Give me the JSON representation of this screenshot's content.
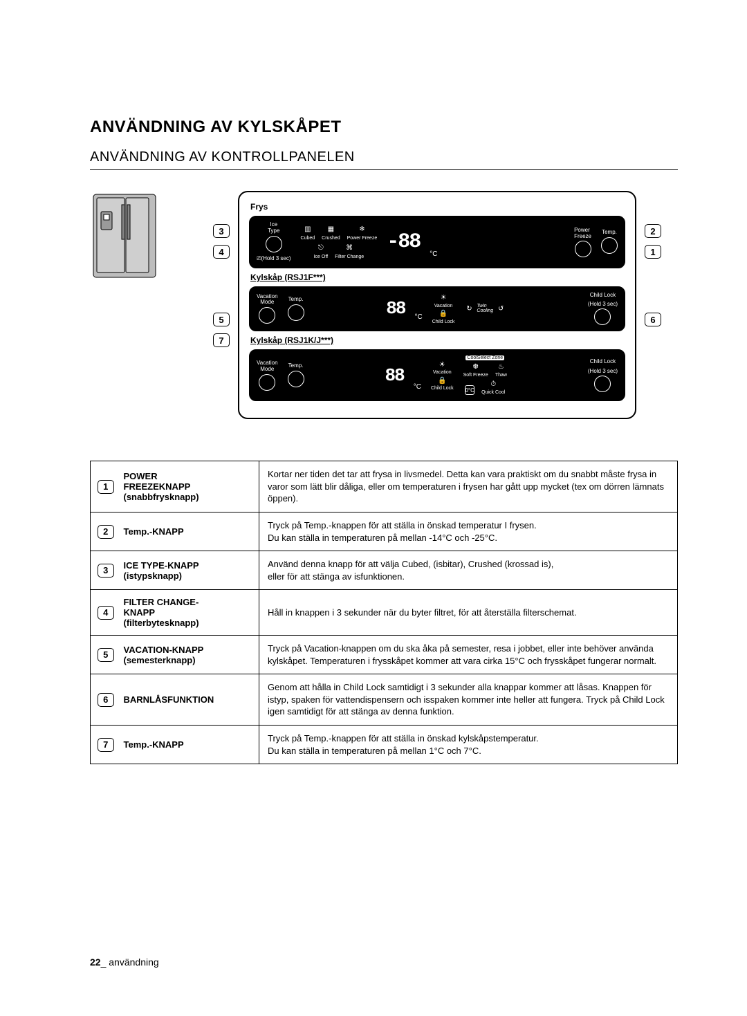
{
  "page": {
    "number": "22",
    "section_word": "användning"
  },
  "headings": {
    "main": "ANVÄNDNING AV KYLSKÅPET",
    "sub": "ANVÄNDNING AV KONTROLLPANELEN"
  },
  "panel": {
    "sections": {
      "frys": "Frys",
      "kyl1": "Kylskåp (RSJ1F***)",
      "kyl2": "Kylskåp (RSJ1K/J***)"
    },
    "frys": {
      "ice_type": "Ice\nType",
      "cubed": "Cubed",
      "crushed": "Crushed",
      "power_freeze_icon": "Power Freeze",
      "ice_off": "Ice Off",
      "filter_change": "Filter Change",
      "hold3": "(Hold 3 sec)",
      "seg": "-88",
      "degc": "°C",
      "power_freeze": "Power\nFreeze",
      "temp": "Temp."
    },
    "kyl": {
      "vacation_mode": "Vacation\nMode",
      "temp": "Temp.",
      "seg": "88",
      "degc": "°C",
      "vacation": "Vacation",
      "child_lock_small": "Child Lock",
      "twin_cooling": "Twin\nCooling",
      "child_lock": "Child Lock",
      "hold3": "(Hold 3 sec)",
      "cool_select": "CoolSelect Zone",
      "soft_freeze": "Soft Freeze",
      "thaw": "Thaw",
      "zero": "0°C",
      "quick_cool": "Quick Cool"
    },
    "callouts": {
      "c1": "1",
      "c2": "2",
      "c3": "3",
      "c4": "4",
      "c5": "5",
      "c6": "6",
      "c7": "7"
    }
  },
  "rows": [
    {
      "num": "1",
      "name_html": "POWER FREEZEKNAPP (snabbfrysknapp)",
      "name_lines": [
        "POWER",
        "FREEZEKNAPP",
        "(snabbfrysknapp)"
      ],
      "desc": "Kortar ner tiden det tar att frysa in livsmedel. Detta kan vara praktiskt om du snabbt måste frysa in varor som lätt blir dåliga, eller om temperaturen i frysen har gått upp mycket (tex om dörren lämnats öppen)."
    },
    {
      "num": "2",
      "name_lines": [
        "Temp.-KNAPP"
      ],
      "desc": "Tryck på Temp.-knappen för att ställa in önskad temperatur I frysen.\nDu kan ställa in temperaturen på mellan -14°C och -25°C."
    },
    {
      "num": "3",
      "name_lines": [
        "ICE TYPE-KNAPP",
        "(istypsknapp)"
      ],
      "desc": "Använd denna knapp för att välja Cubed, (isbitar), Crushed (krossad is),\neller för att stänga av isfunktionen."
    },
    {
      "num": "4",
      "name_lines": [
        "FILTER CHANGE-",
        "KNAPP",
        "(filterbytesknapp)"
      ],
      "desc": "Håll in knappen i 3 sekunder när du byter filtret, för att återställa filterschemat."
    },
    {
      "num": "5",
      "name_lines": [
        "VACATION-KNAPP",
        "(semesterknapp)"
      ],
      "desc": "Tryck på Vacation-knappen om du ska åka på semester, resa i jobbet, eller inte behöver använda kylskåpet. Temperaturen i frysskåpet kommer att vara cirka 15°C och frysskåpet fungerar normalt."
    },
    {
      "num": "6",
      "name_lines": [
        "BARNLÅSFUNKTION"
      ],
      "desc": "Genom att hålla in Child Lock samtidigt i 3 sekunder alla knappar kommer att låsas. Knappen för istyp, spaken för vattendispensern och isspaken kommer inte heller att fungera. Tryck på Child Lock igen samtidigt för att stänga av denna funktion."
    },
    {
      "num": "7",
      "name_lines": [
        "Temp.-KNAPP"
      ],
      "desc": "Tryck på Temp.-knappen för att ställa in önskad kylskåpstemperatur.\nDu kan ställa in temperaturen på mellan 1°C och 7°C."
    }
  ]
}
